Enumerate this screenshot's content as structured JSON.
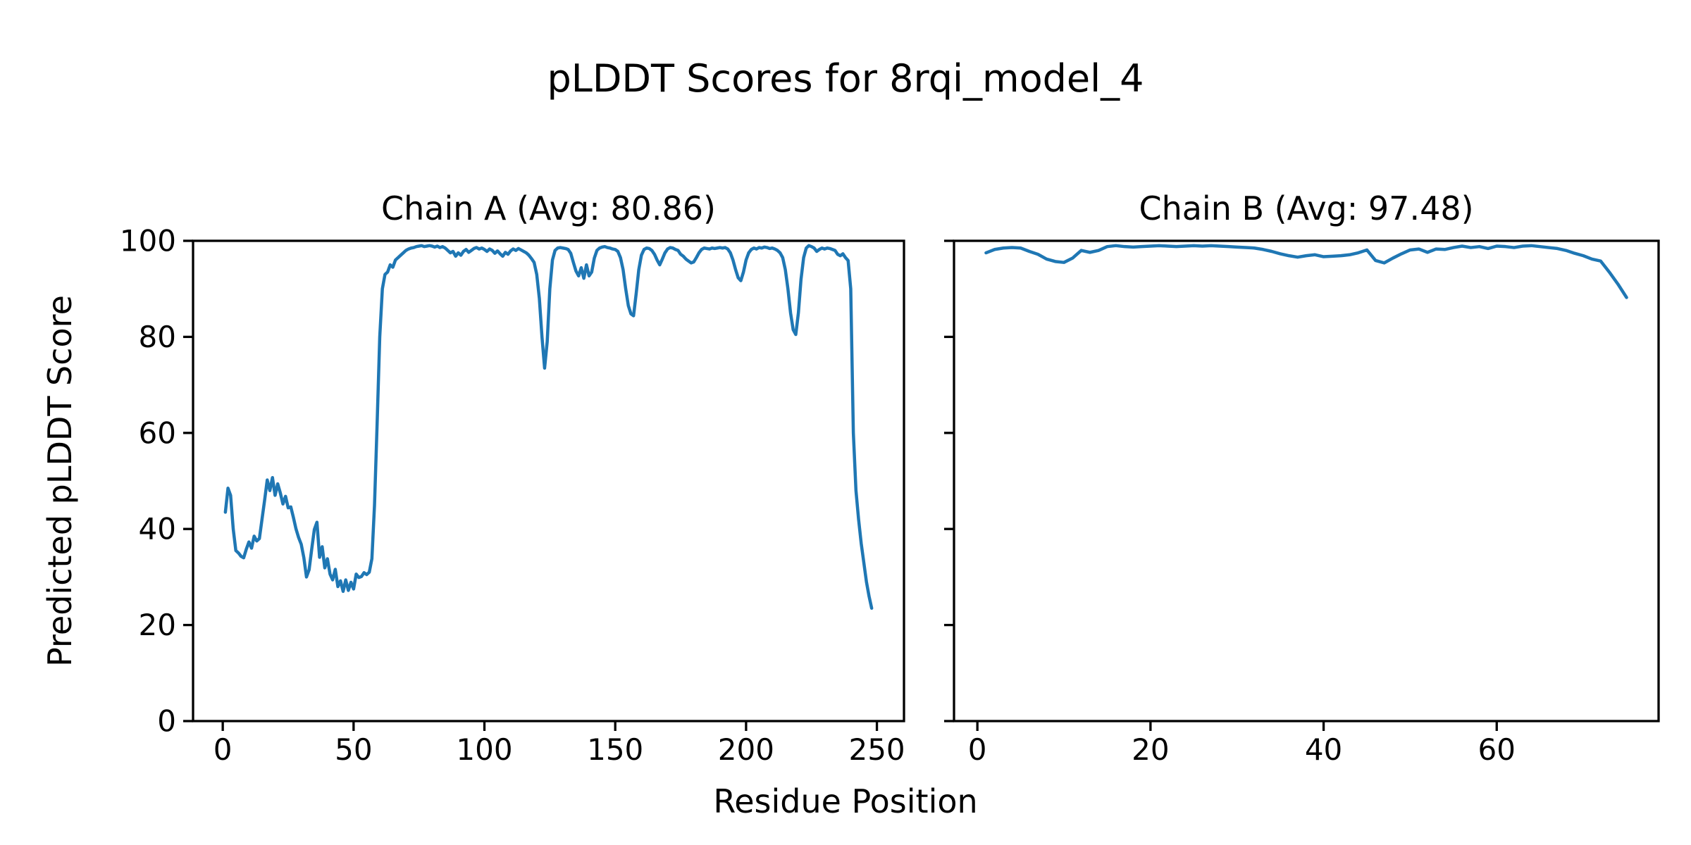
{
  "figure": {
    "title": "pLDDT Scores for 8rqi_model_4",
    "xlabel": "Residue Position",
    "ylabel": "Predicted pLDDT Score",
    "background_color": "#ffffff",
    "text_color": "#000000",
    "spine_color": "#000000"
  },
  "chart_data": [
    {
      "type": "line",
      "title": "Chain A (Avg: 80.86)",
      "series_name": "Chain A pLDDT",
      "avg": 80.86,
      "color": "#1f77b4",
      "x_start": 1,
      "xlim": [
        -11.35,
        260.35
      ],
      "ylim": [
        0,
        100
      ],
      "xticks": [
        0,
        50,
        100,
        150,
        200,
        250
      ],
      "yticks": [
        0,
        20,
        40,
        60,
        80,
        100
      ],
      "show_ytick_labels": true,
      "grid": false,
      "values": [
        43.5,
        48.5,
        47.0,
        40.0,
        35.5,
        35.0,
        34.3,
        34.0,
        35.8,
        37.3,
        36.0,
        38.5,
        37.5,
        38.0,
        42.0,
        46.0,
        50.2,
        48.0,
        50.7,
        47.0,
        49.4,
        47.5,
        45.2,
        46.8,
        44.4,
        44.6,
        42.4,
        40.0,
        38.2,
        36.8,
        34.0,
        30.0,
        31.5,
        35.8,
        39.9,
        41.4,
        34.1,
        36.3,
        31.9,
        33.8,
        30.6,
        29.4,
        31.6,
        28.0,
        29.2,
        27.0,
        29.4,
        27.2,
        28.9,
        27.5,
        30.6,
        29.9,
        30.1,
        30.9,
        30.5,
        31.0,
        33.8,
        45.0,
        62.0,
        80.0,
        90.0,
        93.0,
        93.5,
        95.0,
        94.5,
        96.0,
        96.5,
        97.0,
        97.5,
        98.0,
        98.3,
        98.5,
        98.6,
        98.8,
        98.9,
        99.0,
        98.8,
        98.9,
        99.0,
        98.9,
        98.7,
        98.9,
        98.6,
        98.8,
        98.5,
        98.0,
        97.5,
        97.8,
        96.8,
        97.5,
        97.0,
        97.8,
        98.2,
        97.6,
        98.0,
        98.4,
        98.6,
        98.3,
        98.5,
        98.2,
        97.8,
        98.3,
        98.0,
        97.4,
        97.9,
        97.3,
        96.8,
        97.6,
        97.2,
        97.9,
        98.3,
        98.0,
        98.4,
        98.1,
        97.8,
        97.5,
        97.0,
        96.3,
        95.5,
        93.0,
        88.0,
        80.0,
        73.5,
        79.0,
        90.0,
        96.0,
        98.0,
        98.5,
        98.6,
        98.5,
        98.4,
        98.2,
        97.4,
        95.5,
        93.7,
        92.7,
        94.4,
        92.2,
        95.0,
        92.7,
        93.5,
        96.4,
        98.0,
        98.5,
        98.7,
        98.8,
        98.6,
        98.5,
        98.3,
        98.2,
        97.8,
        96.5,
        94.0,
        90.0,
        86.5,
        84.8,
        84.4,
        89.0,
        94.0,
        97.0,
        98.2,
        98.5,
        98.4,
        98.0,
        97.2,
        96.0,
        95.0,
        96.2,
        97.5,
        98.3,
        98.6,
        98.5,
        98.2,
        98.0,
        97.2,
        96.8,
        96.2,
        95.8,
        95.4,
        95.6,
        96.5,
        97.5,
        98.2,
        98.5,
        98.4,
        98.3,
        98.5,
        98.4,
        98.5,
        98.6,
        98.5,
        98.6,
        98.3,
        97.5,
        96.0,
        94.0,
        92.3,
        91.7,
        93.5,
        96.0,
        97.5,
        98.2,
        98.5,
        98.3,
        98.6,
        98.5,
        98.7,
        98.6,
        98.4,
        98.5,
        98.3,
        98.0,
        97.5,
        96.5,
        94.0,
        90.0,
        85.0,
        81.5,
        80.5,
        85.0,
        92.0,
        96.5,
        98.5,
        99.0,
        98.8,
        98.5,
        97.8,
        98.2,
        98.5,
        98.3,
        98.5,
        98.4,
        98.2,
        98.0,
        97.2,
        96.9,
        97.3,
        96.5,
        95.9,
        90.0,
        60.0,
        48.0,
        42.0,
        37.0,
        33.0,
        29.0,
        26.0,
        23.5
      ]
    },
    {
      "type": "line",
      "title": "Chain B (Avg: 97.48)",
      "series_name": "Chain B pLDDT",
      "avg": 97.48,
      "color": "#1f77b4",
      "x_start": 1,
      "xlim": [
        -2.7,
        78.7
      ],
      "ylim": [
        0,
        100
      ],
      "xticks": [
        0,
        20,
        40,
        60
      ],
      "yticks": [
        0,
        20,
        40,
        60,
        80,
        100
      ],
      "show_ytick_labels": false,
      "grid": false,
      "values": [
        97.5,
        98.2,
        98.5,
        98.6,
        98.5,
        97.8,
        97.2,
        96.2,
        95.7,
        95.5,
        96.4,
        98.0,
        97.6,
        98.0,
        98.8,
        99.0,
        98.8,
        98.7,
        98.8,
        98.9,
        99.0,
        98.9,
        98.8,
        98.9,
        99.0,
        98.9,
        99.0,
        98.9,
        98.8,
        98.7,
        98.6,
        98.5,
        98.2,
        97.8,
        97.3,
        96.9,
        96.6,
        96.9,
        97.1,
        96.7,
        96.8,
        96.9,
        97.1,
        97.5,
        98.1,
        95.9,
        95.4,
        96.4,
        97.3,
        98.1,
        98.3,
        97.6,
        98.3,
        98.2,
        98.6,
        98.9,
        98.6,
        98.8,
        98.4,
        98.9,
        98.8,
        98.6,
        98.9,
        99.0,
        98.8,
        98.6,
        98.4,
        98.0,
        97.4,
        96.9,
        96.2,
        95.8,
        93.5,
        91.0,
        88.2
      ]
    }
  ]
}
